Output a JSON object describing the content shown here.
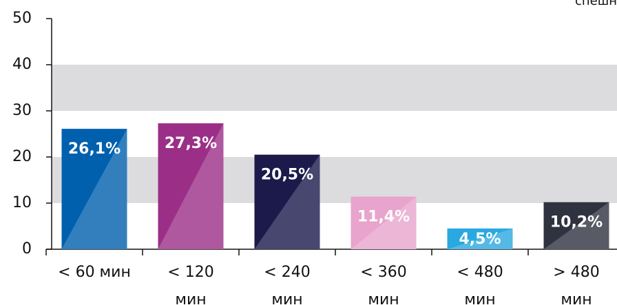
{
  "chart_data": {
    "type": "bar",
    "annotation": "спешн",
    "categories": [
      "< 60 мин",
      "< 120\nмин",
      "< 240\nмин",
      "< 360\nмин",
      "< 480\nмин",
      "> 480\nмин"
    ],
    "values": [
      26.1,
      27.3,
      20.5,
      11.4,
      4.5,
      10.2
    ],
    "value_labels": [
      "26,1%",
      "27,3%",
      "20,5%",
      "11,4%",
      "4,5%",
      "10,2%"
    ],
    "colors": [
      "#0060ae",
      "#9b2f88",
      "#1b1a4b",
      "#e8a4cc",
      "#2aa8e0",
      "#2f3340"
    ],
    "ylim": [
      0,
      50
    ],
    "yticks": [
      0,
      10,
      20,
      30,
      40,
      50
    ],
    "grid_bands": true,
    "band_color": "#dcdcde"
  }
}
